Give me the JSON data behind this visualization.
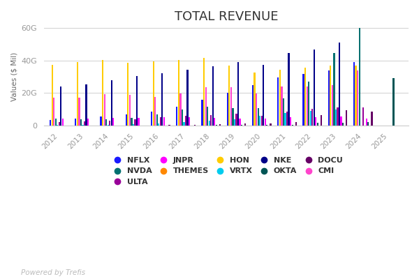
{
  "title": "TOTAL REVENUE",
  "ylabel": "Values ($ Mil)",
  "watermark": "Powered by Trefis",
  "years": [
    2012,
    2013,
    2014,
    2015,
    2016,
    2017,
    2018,
    2019,
    2020,
    2021,
    2022,
    2023,
    2024,
    2025
  ],
  "series_order": [
    "NFLX",
    "HON",
    "CMI",
    "NVDA",
    "VRTX",
    "ULTA",
    "NKE",
    "JNPR",
    "OKTA",
    "THEMES",
    "DOCU"
  ],
  "legend_order": [
    "NFLX",
    "NVDA",
    "ULTA",
    "JNPR",
    "THEMES",
    "HON",
    "VRTX",
    "NKE",
    "OKTA",
    "DOCU",
    "CMI"
  ],
  "series": {
    "NFLX": {
      "color": "#1a1aff",
      "values": [
        3.6,
        4.4,
        5.5,
        6.8,
        8.8,
        11.7,
        15.8,
        20.2,
        25.0,
        29.7,
        31.6,
        33.7,
        38.9,
        null
      ]
    },
    "HON": {
      "color": "#ffcc00",
      "values": [
        37.5,
        39.1,
        40.3,
        38.6,
        39.3,
        40.5,
        41.8,
        36.7,
        32.7,
        34.4,
        35.5,
        36.7,
        36.7,
        null
      ]
    },
    "CMI": {
      "color": "#ff44cc",
      "values": [
        17.3,
        17.3,
        19.2,
        19.1,
        17.5,
        19.8,
        23.6,
        23.6,
        19.8,
        24.0,
        24.0,
        25.0,
        34.1,
        null
      ]
    },
    "NVDA": {
      "color": "#007070",
      "values": [
        4.3,
        4.1,
        4.1,
        4.7,
        6.9,
        9.7,
        11.7,
        10.9,
        10.9,
        16.7,
        26.9,
        44.8,
        60.9,
        null
      ]
    },
    "VRTX": {
      "color": "#00ccee",
      "values": [
        0.4,
        0.5,
        0.6,
        1.0,
        1.5,
        2.1,
        3.0,
        3.8,
        6.2,
        7.6,
        8.9,
        9.9,
        null,
        null
      ]
    },
    "ULTA": {
      "color": "#990099",
      "values": [
        2.2,
        2.7,
        3.2,
        3.9,
        5.0,
        5.9,
        6.3,
        7.4,
        6.2,
        8.6,
        10.2,
        11.2,
        11.3,
        null
      ]
    },
    "NKE": {
      "color": "#000088",
      "values": [
        24.1,
        25.3,
        27.8,
        30.6,
        32.4,
        34.4,
        36.4,
        39.1,
        37.4,
        44.5,
        46.7,
        51.2,
        null,
        null
      ]
    },
    "JNPR": {
      "color": "#ff00ff",
      "values": [
        4.3,
        4.4,
        4.6,
        4.6,
        5.0,
        5.0,
        4.6,
        4.4,
        4.4,
        5.0,
        5.3,
        5.6,
        4.4,
        null
      ]
    },
    "OKTA": {
      "color": "#005555",
      "values": [
        null,
        null,
        null,
        null,
        null,
        0.16,
        0.59,
        0.58,
        0.59,
        0.59,
        1.86,
        1.86,
        2.26,
        29.0
      ]
    },
    "THEMES": {
      "color": "#ff8800",
      "values": [
        null,
        null,
        null,
        null,
        null,
        null,
        null,
        null,
        null,
        null,
        null,
        null,
        null,
        null
      ]
    },
    "DOCU": {
      "color": "#660066",
      "values": [
        null,
        null,
        null,
        null,
        0.5,
        0.5,
        0.7,
        1.4,
        1.4,
        2.1,
        6.4,
        9.4,
        8.5,
        null
      ]
    }
  },
  "ylim": [
    0,
    60
  ],
  "yticks": [
    0,
    20,
    40,
    60
  ],
  "ytick_labels": [
    "0",
    "20G",
    "40G",
    "60G"
  ],
  "background_color": "#ffffff",
  "grid_color": "#d0d0d0"
}
